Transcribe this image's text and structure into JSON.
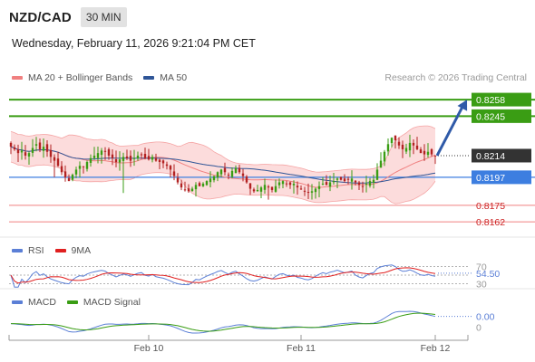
{
  "header": {
    "pair": "NZD/CAD",
    "timeframe": "30 MIN",
    "datetime": "Wednesday, February 11, 2026 9:21:04 PM CET"
  },
  "legend": {
    "main": [
      {
        "label": "MA 20 + Bollinger Bands",
        "color": "#f08080"
      },
      {
        "label": "MA 50",
        "color": "#2f5597"
      }
    ],
    "rsi": [
      {
        "label": "RSI",
        "color": "#5b7fd6"
      },
      {
        "label": "9MA",
        "color": "#e02020"
      }
    ],
    "macd": [
      {
        "label": "MACD",
        "color": "#5b7fd6"
      },
      {
        "label": "MACD Signal",
        "color": "#3a9d14"
      }
    ]
  },
  "credit": "Research © 2026 Trading Central",
  "colors": {
    "up": "#3a9d14",
    "down": "#b22222",
    "bollinger_fill": "#fbd3d3",
    "ma20": "#f08080",
    "ma50": "#2f5597",
    "support": "#3d7ee0",
    "resistance_green": "#3a9d14",
    "target_arrow": "#2f5aa8",
    "current_price_bg": "#333333"
  },
  "chart_data": {
    "type": "candlestick",
    "instrument": "NZD/CAD",
    "timeframe": "30 MIN",
    "x_ticks": [
      "Feb 10",
      "Feb 11",
      "Feb 12"
    ],
    "ylim": [
      0.815,
      0.8268
    ],
    "levels": [
      {
        "value": 0.8258,
        "label": "0.8258",
        "style": "resistance"
      },
      {
        "value": 0.8245,
        "label": "0.8245",
        "style": "resistance"
      },
      {
        "value": 0.8214,
        "label": "0.8214",
        "style": "current"
      },
      {
        "value": 0.8197,
        "label": "0.8197",
        "style": "pivot"
      },
      {
        "value": 0.8175,
        "label": "0.8175",
        "style": "support"
      },
      {
        "value": 0.8162,
        "label": "0.8162",
        "style": "support"
      }
    ],
    "close_series": [
      0.8221,
      0.8219,
      0.8216,
      0.8218,
      0.8214,
      0.8216,
      0.822,
      0.8223,
      0.8219,
      0.8221,
      0.8217,
      0.8213,
      0.821,
      0.8206,
      0.8201,
      0.8197,
      0.8194,
      0.8199,
      0.8203,
      0.8206,
      0.8205,
      0.8209,
      0.8212,
      0.8214,
      0.8216,
      0.8218,
      0.8217,
      0.8214,
      0.8212,
      0.8209,
      0.8211,
      0.8213,
      0.8212,
      0.821,
      0.8212,
      0.8214,
      0.8215,
      0.8212,
      0.8211,
      0.8213,
      0.821,
      0.8209,
      0.8208,
      0.8206,
      0.8203,
      0.8198,
      0.8193,
      0.8189,
      0.8187,
      0.8186,
      0.8188,
      0.8191,
      0.819,
      0.8192,
      0.8194,
      0.8196,
      0.8198,
      0.8201,
      0.8203,
      0.8201,
      0.8199,
      0.8202,
      0.8204,
      0.8201,
      0.8198,
      0.8193,
      0.8188,
      0.8186,
      0.8187,
      0.8189,
      0.8191,
      0.8189,
      0.8187,
      0.819,
      0.8193,
      0.8194,
      0.8192,
      0.8191,
      0.8192,
      0.8189,
      0.8188,
      0.8186,
      0.8185,
      0.8186,
      0.8188,
      0.819,
      0.8192,
      0.8191,
      0.8193,
      0.8194,
      0.8196,
      0.8195,
      0.8194,
      0.8195,
      0.8196,
      0.8193,
      0.8191,
      0.819,
      0.8192,
      0.8194,
      0.8195,
      0.8203,
      0.821,
      0.8217,
      0.8223,
      0.8228,
      0.8226,
      0.8222,
      0.8219,
      0.822,
      0.8224,
      0.8222,
      0.8219,
      0.8216,
      0.8215,
      0.8217,
      0.8215,
      0.8214
    ],
    "projection": {
      "from": 0.8214,
      "to": 0.8258
    },
    "rsi": {
      "ylim": [
        25,
        75
      ],
      "levels": [
        70,
        50,
        30
      ],
      "value_label": "54.50"
    },
    "macd": {
      "value_label": "0.00",
      "zero_label": "0"
    }
  }
}
